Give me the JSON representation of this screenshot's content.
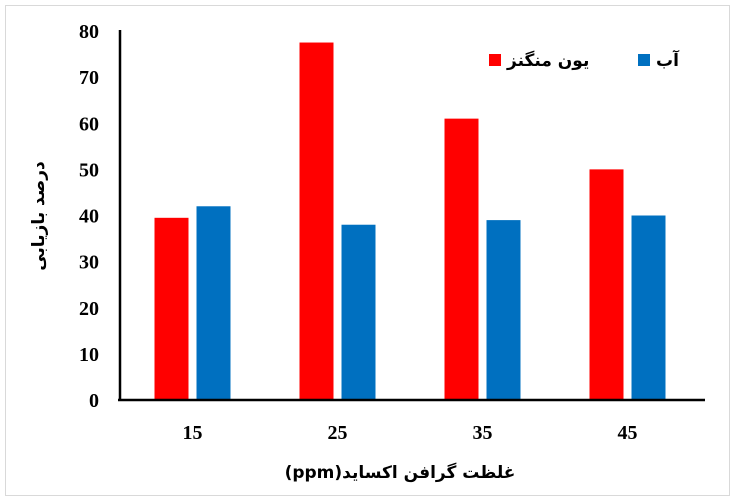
{
  "chart_data": {
    "type": "bar",
    "categories": [
      "15",
      "25",
      "35",
      "45"
    ],
    "series": [
      {
        "name": "یون منگنز",
        "color": "#ff0000",
        "values": [
          39.5,
          77.5,
          61,
          50
        ]
      },
      {
        "name": "آب",
        "color": "#0070c0",
        "values": [
          42,
          38,
          39,
          40
        ]
      }
    ],
    "ylim": [
      0,
      80
    ],
    "yticks": [
      "0",
      "10",
      "20",
      "30",
      "40",
      "50",
      "60",
      "70",
      "80"
    ],
    "xlabel": "(ppm)غلظت گرافن اکساید",
    "ylabel": "درصد بازیابی",
    "legend": "top-right",
    "grid": false
  }
}
